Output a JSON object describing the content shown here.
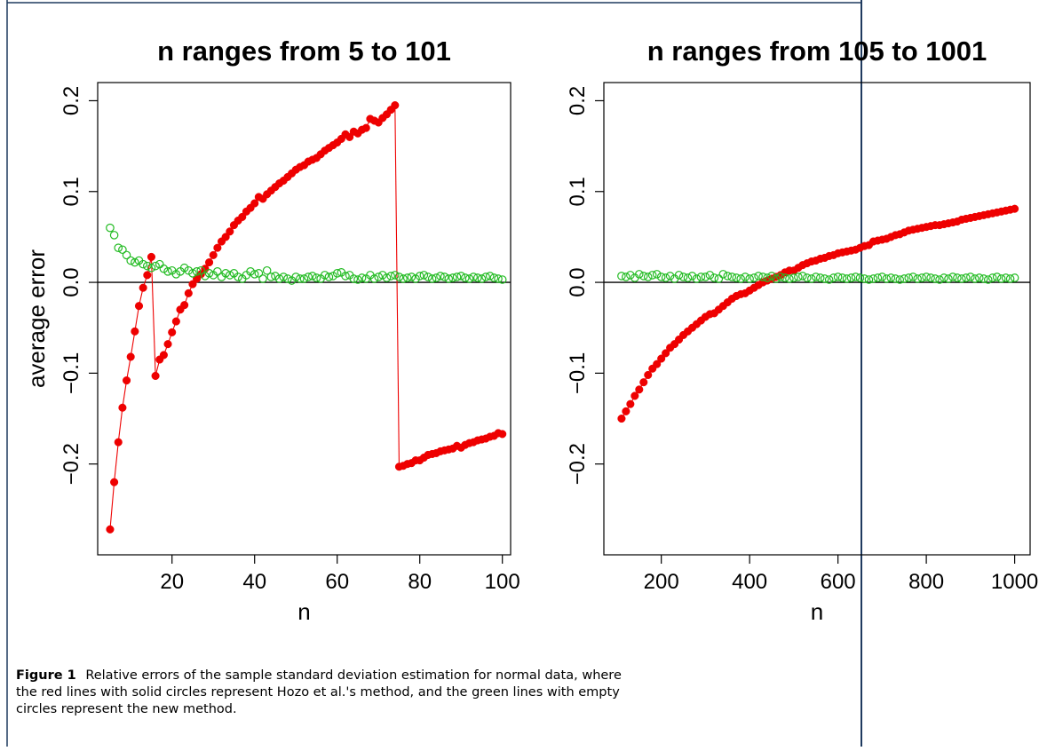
{
  "figure": {
    "caption_label": "Figure 1",
    "caption_text": "Relative errors of the sample standard deviation estimation for normal data, where the red lines with solid circles represent Hozo et al.'s method, and the green lines with empty circles represent the new method."
  },
  "colors": {
    "red": "#ee0000",
    "green": "#22bb22",
    "axis": "#000000",
    "frame_line": "#1f3a5f"
  },
  "chart_data": [
    {
      "type": "scatter",
      "title": "n ranges from 5 to 101",
      "xlabel": "n",
      "ylabel": "average error",
      "xlim": [
        2,
        102
      ],
      "ylim": [
        -0.3,
        0.22
      ],
      "xticks": [
        20,
        40,
        60,
        80,
        100
      ],
      "xtick_labels": [
        "20",
        "40",
        "60",
        "80",
        "100"
      ],
      "yticks": [
        -0.2,
        -0.1,
        0.0,
        0.1,
        0.2
      ],
      "ytick_labels": [
        "−0.2",
        "−0.1",
        "0.0",
        "0.1",
        "0.2"
      ],
      "hline": 0,
      "series": [
        {
          "color": "red",
          "marker": "filled",
          "line": true,
          "x": [
            5,
            6,
            7,
            8,
            9,
            10,
            11,
            12,
            13,
            14,
            15,
            16,
            17,
            18,
            19,
            20,
            21,
            22,
            23,
            24,
            25,
            26,
            27,
            28,
            29,
            30,
            31,
            32,
            33,
            34,
            35,
            36,
            37,
            38,
            39,
            40,
            41,
            42,
            43,
            44,
            45,
            46,
            47,
            48,
            49,
            50,
            51,
            52,
            53,
            54,
            55,
            56,
            57,
            58,
            59,
            60,
            61,
            62,
            63,
            64,
            65,
            66,
            67,
            68,
            69,
            70,
            71,
            72,
            73,
            74,
            75,
            76,
            77,
            78,
            79,
            80,
            81,
            82,
            83,
            84,
            85,
            86,
            87,
            88,
            89,
            90,
            91,
            92,
            93,
            94,
            95,
            96,
            97,
            98,
            99,
            100
          ],
          "y": [
            -0.272,
            -0.22,
            -0.176,
            -0.138,
            -0.108,
            -0.082,
            -0.054,
            -0.026,
            -0.006,
            0.008,
            0.028,
            -0.103,
            -0.085,
            -0.08,
            -0.068,
            -0.055,
            -0.043,
            -0.03,
            -0.025,
            -0.012,
            -0.002,
            0.004,
            0.009,
            0.015,
            0.022,
            0.03,
            0.038,
            0.045,
            0.05,
            0.056,
            0.063,
            0.068,
            0.072,
            0.078,
            0.082,
            0.087,
            0.094,
            0.092,
            0.097,
            0.101,
            0.105,
            0.109,
            0.112,
            0.116,
            0.12,
            0.124,
            0.127,
            0.129,
            0.133,
            0.135,
            0.137,
            0.141,
            0.145,
            0.148,
            0.151,
            0.154,
            0.158,
            0.163,
            0.16,
            0.166,
            0.164,
            0.168,
            0.17,
            0.18,
            0.178,
            0.176,
            0.181,
            0.185,
            0.19,
            0.195,
            -0.203,
            -0.202,
            -0.2,
            -0.199,
            -0.196,
            -0.196,
            -0.193,
            -0.19,
            -0.189,
            -0.188,
            -0.186,
            -0.185,
            -0.184,
            -0.183,
            -0.18,
            -0.182,
            -0.179,
            -0.177,
            -0.176,
            -0.174,
            -0.173,
            -0.172,
            -0.17,
            -0.169,
            -0.166,
            -0.167
          ],
          "breaks_after": [
            15,
            70
          ]
        },
        {
          "color": "green",
          "marker": "open",
          "line": false,
          "x": [
            5,
            6,
            7,
            8,
            9,
            10,
            11,
            12,
            13,
            14,
            15,
            16,
            17,
            18,
            19,
            20,
            21,
            22,
            23,
            24,
            25,
            26,
            27,
            28,
            29,
            30,
            31,
            32,
            33,
            34,
            35,
            36,
            37,
            38,
            39,
            40,
            41,
            42,
            43,
            44,
            45,
            46,
            47,
            48,
            49,
            50,
            51,
            52,
            53,
            54,
            55,
            56,
            57,
            58,
            59,
            60,
            61,
            62,
            63,
            64,
            65,
            66,
            67,
            68,
            69,
            70,
            71,
            72,
            73,
            74,
            75,
            76,
            77,
            78,
            79,
            80,
            81,
            82,
            83,
            84,
            85,
            86,
            87,
            88,
            89,
            90,
            91,
            92,
            93,
            94,
            95,
            96,
            97,
            98,
            99,
            100
          ],
          "y": [
            0.06,
            0.052,
            0.038,
            0.036,
            0.03,
            0.024,
            0.022,
            0.024,
            0.02,
            0.018,
            0.016,
            0.018,
            0.02,
            0.015,
            0.012,
            0.013,
            0.009,
            0.012,
            0.016,
            0.013,
            0.01,
            0.012,
            0.013,
            0.007,
            0.01,
            0.008,
            0.012,
            0.006,
            0.01,
            0.008,
            0.01,
            0.006,
            0.004,
            0.008,
            0.012,
            0.009,
            0.01,
            0.004,
            0.013,
            0.006,
            0.007,
            0.004,
            0.006,
            0.004,
            0.002,
            0.006,
            0.004,
            0.004,
            0.006,
            0.007,
            0.005,
            0.004,
            0.008,
            0.006,
            0.007,
            0.01,
            0.011,
            0.007,
            0.008,
            0.004,
            0.003,
            0.005,
            0.004,
            0.008,
            0.004,
            0.006,
            0.008,
            0.005,
            0.007,
            0.008,
            0.006,
            0.004,
            0.005,
            0.006,
            0.004,
            0.007,
            0.008,
            0.006,
            0.004,
            0.005,
            0.007,
            0.006,
            0.004,
            0.005,
            0.006,
            0.007,
            0.005,
            0.004,
            0.006,
            0.005,
            0.004,
            0.006,
            0.007,
            0.005,
            0.004,
            0.003
          ]
        }
      ]
    },
    {
      "type": "scatter",
      "title": "n ranges from 105 to 1001",
      "xlabel": "n",
      "ylabel": "",
      "xlim": [
        70,
        1035
      ],
      "ylim": [
        -0.3,
        0.22
      ],
      "xticks": [
        200,
        400,
        600,
        800,
        1000
      ],
      "xtick_labels": [
        "200",
        "400",
        "600",
        "800",
        "1000"
      ],
      "yticks": [
        -0.2,
        -0.1,
        0.0,
        0.1,
        0.2
      ],
      "ytick_labels": [
        "−0.2",
        "−0.1",
        "0.0",
        "0.1",
        "0.2"
      ],
      "hline": 0,
      "series": [
        {
          "color": "red",
          "marker": "filled",
          "line": true,
          "x": [
            110,
            120,
            130,
            140,
            150,
            160,
            170,
            180,
            190,
            200,
            210,
            220,
            230,
            240,
            250,
            260,
            270,
            280,
            290,
            300,
            310,
            320,
            330,
            340,
            350,
            360,
            370,
            380,
            390,
            400,
            410,
            420,
            430,
            440,
            450,
            460,
            470,
            480,
            490,
            500,
            510,
            520,
            530,
            540,
            550,
            560,
            570,
            580,
            590,
            600,
            610,
            620,
            630,
            640,
            650,
            660,
            670,
            680,
            690,
            700,
            710,
            720,
            730,
            740,
            750,
            760,
            770,
            780,
            790,
            800,
            810,
            820,
            830,
            840,
            850,
            860,
            870,
            880,
            890,
            900,
            910,
            920,
            930,
            940,
            950,
            960,
            970,
            980,
            990,
            1000
          ],
          "y": [
            -0.15,
            -0.142,
            -0.134,
            -0.125,
            -0.118,
            -0.11,
            -0.102,
            -0.095,
            -0.09,
            -0.084,
            -0.078,
            -0.072,
            -0.068,
            -0.063,
            -0.058,
            -0.054,
            -0.05,
            -0.046,
            -0.042,
            -0.038,
            -0.035,
            -0.034,
            -0.03,
            -0.026,
            -0.022,
            -0.018,
            -0.015,
            -0.013,
            -0.012,
            -0.009,
            -0.006,
            -0.003,
            0.0,
            0.002,
            0.004,
            0.006,
            0.008,
            0.011,
            0.013,
            0.013,
            0.016,
            0.019,
            0.021,
            0.023,
            0.024,
            0.026,
            0.027,
            0.029,
            0.03,
            0.032,
            0.033,
            0.034,
            0.035,
            0.036,
            0.038,
            0.04,
            0.041,
            0.045,
            0.046,
            0.047,
            0.048,
            0.05,
            0.052,
            0.053,
            0.055,
            0.057,
            0.058,
            0.059,
            0.06,
            0.061,
            0.062,
            0.063,
            0.063,
            0.064,
            0.065,
            0.066,
            0.067,
            0.069,
            0.07,
            0.071,
            0.072,
            0.073,
            0.074,
            0.075,
            0.076,
            0.077,
            0.078,
            0.079,
            0.08,
            0.081
          ]
        },
        {
          "color": "green",
          "marker": "open",
          "line": false,
          "x": [
            110,
            120,
            130,
            140,
            150,
            160,
            170,
            180,
            190,
            200,
            210,
            220,
            230,
            240,
            250,
            260,
            270,
            280,
            290,
            300,
            310,
            320,
            330,
            340,
            350,
            360,
            370,
            380,
            390,
            400,
            410,
            420,
            430,
            440,
            450,
            460,
            470,
            480,
            490,
            500,
            510,
            520,
            530,
            540,
            550,
            560,
            570,
            580,
            590,
            600,
            610,
            620,
            630,
            640,
            650,
            660,
            670,
            680,
            690,
            700,
            710,
            720,
            730,
            740,
            750,
            760,
            770,
            780,
            790,
            800,
            810,
            820,
            830,
            840,
            850,
            860,
            870,
            880,
            890,
            900,
            910,
            920,
            930,
            940,
            950,
            960,
            970,
            980,
            990,
            1000
          ],
          "y": [
            0.007,
            0.006,
            0.008,
            0.005,
            0.009,
            0.007,
            0.006,
            0.008,
            0.009,
            0.006,
            0.005,
            0.007,
            0.004,
            0.008,
            0.006,
            0.005,
            0.007,
            0.004,
            0.006,
            0.006,
            0.008,
            0.005,
            0.004,
            0.009,
            0.007,
            0.006,
            0.005,
            0.004,
            0.006,
            0.004,
            0.005,
            0.007,
            0.006,
            0.005,
            0.007,
            0.004,
            0.006,
            0.005,
            0.004,
            0.005,
            0.006,
            0.007,
            0.005,
            0.004,
            0.006,
            0.005,
            0.004,
            0.003,
            0.005,
            0.006,
            0.005,
            0.004,
            0.005,
            0.006,
            0.005,
            0.004,
            0.003,
            0.004,
            0.005,
            0.006,
            0.004,
            0.005,
            0.004,
            0.003,
            0.004,
            0.005,
            0.006,
            0.004,
            0.005,
            0.006,
            0.005,
            0.004,
            0.003,
            0.005,
            0.004,
            0.006,
            0.005,
            0.004,
            0.005,
            0.006,
            0.004,
            0.005,
            0.004,
            0.003,
            0.005,
            0.006,
            0.004,
            0.005,
            0.004,
            0.005
          ]
        }
      ]
    }
  ]
}
